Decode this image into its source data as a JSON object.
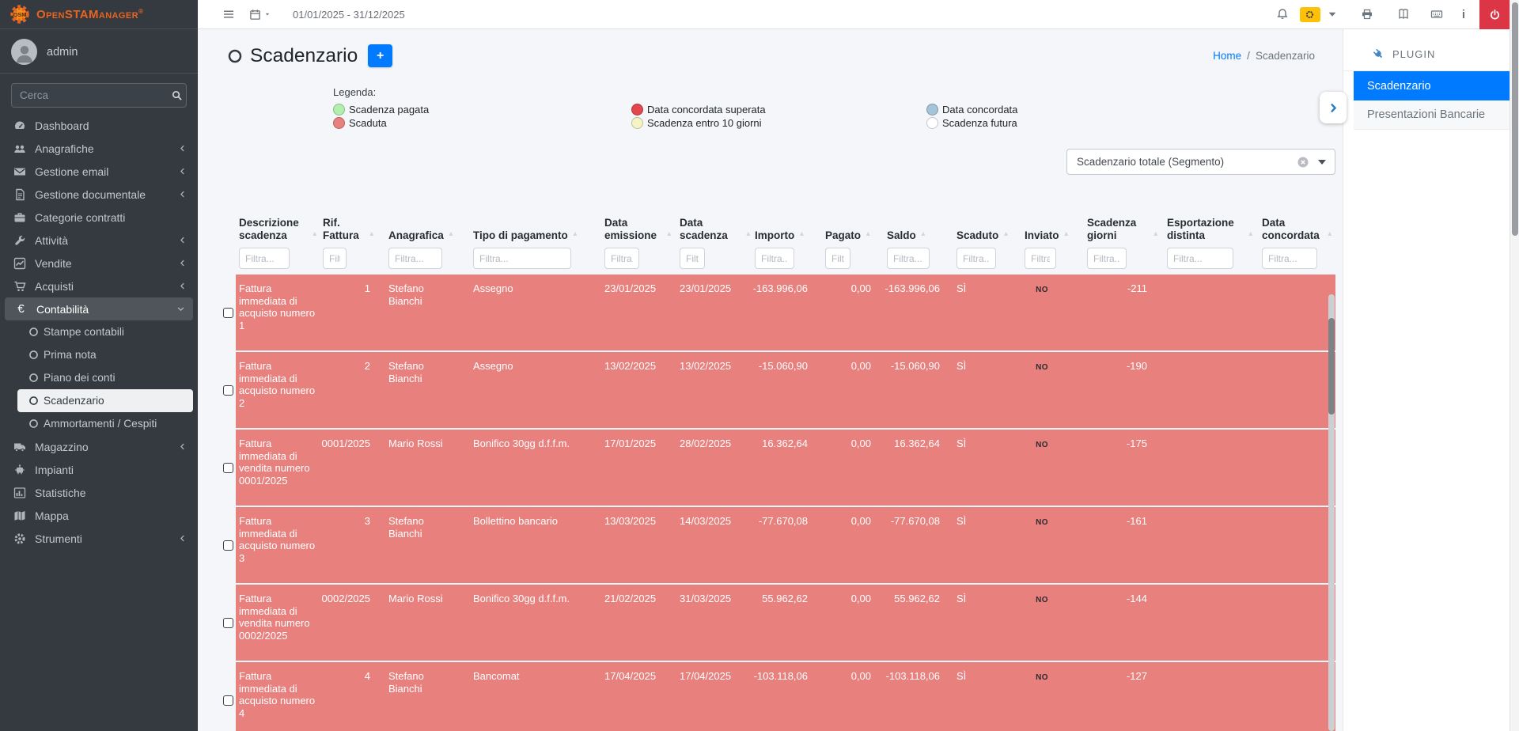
{
  "brand": {
    "logo_text": "OpenSTAManager",
    "logo_reg": "®",
    "logo_badge": "OSM"
  },
  "user": {
    "name": "admin"
  },
  "search": {
    "placeholder": "Cerca"
  },
  "topbar": {
    "date_range": "01/01/2025 - 31/12/2025"
  },
  "sidebar": {
    "items": [
      {
        "label": "Dashboard",
        "icon": "tachometer",
        "chevron": false
      },
      {
        "label": "Anagrafiche",
        "icon": "users",
        "chevron": true
      },
      {
        "label": "Gestione email",
        "icon": "envelope",
        "chevron": true
      },
      {
        "label": "Gestione documentale",
        "icon": "file",
        "chevron": true
      },
      {
        "label": "Categorie contratti",
        "icon": "briefcase",
        "chevron": false
      },
      {
        "label": "Attività",
        "icon": "wrench",
        "chevron": true
      },
      {
        "label": "Vendite",
        "icon": "chart-line",
        "chevron": true
      },
      {
        "label": "Acquisti",
        "icon": "cart",
        "chevron": true
      },
      {
        "label": "Contabilità",
        "icon": "euro",
        "chevron": false,
        "open": true,
        "children": [
          "Stampe contabili",
          "Prima nota",
          "Piano dei conti",
          "Scadenzario",
          "Ammortamenti / Cespiti"
        ],
        "active_child": "Scadenzario"
      },
      {
        "label": "Magazzino",
        "icon": "truck",
        "chevron": true
      },
      {
        "label": "Impianti",
        "icon": "robot",
        "chevron": false
      },
      {
        "label": "Statistiche",
        "icon": "bar-chart",
        "chevron": false
      },
      {
        "label": "Mappa",
        "icon": "map",
        "chevron": false
      },
      {
        "label": "Strumenti",
        "icon": "gear",
        "chevron": true
      }
    ]
  },
  "page": {
    "title": "Scadenzario",
    "add_button": "+",
    "breadcrumb_home": "Home",
    "breadcrumb_sep": "/",
    "breadcrumb_current": "Scadenzario"
  },
  "legend": {
    "title": "Legenda:",
    "items": [
      {
        "label": "Scadenza pagata",
        "color": "#b3efac"
      },
      {
        "label": "Scaduta",
        "color": "#e8807e"
      },
      {
        "label": "Data concordata superata",
        "color": "#e2474d"
      },
      {
        "label": "Scadenza entro 10 giorni",
        "color": "#f6f4c5"
      },
      {
        "label": "Data concordata",
        "color": "#a4c4da"
      },
      {
        "label": "Scadenza futura",
        "color": "#ffffff"
      }
    ]
  },
  "segment": {
    "value": "Scadenzario totale (Segmento)"
  },
  "table": {
    "filter_placeholder": "Filtra...",
    "columns": [
      "Descrizione scadenza",
      "Rif. Fattura",
      "Anagrafica",
      "Tipo di pagamento",
      "Data emissione",
      "Data scadenza",
      "Importo",
      "Pagato",
      "Saldo",
      "Scaduto",
      "Inviato",
      "Scadenza giorni",
      "Esportazione distinta",
      "Data concordata"
    ],
    "row_color": "#e8807e",
    "rows": [
      {
        "descrizione": "Fattura immediata di acquisto numero 1",
        "rif": "1",
        "anagrafica": "Stefano Bianchi",
        "pagamento": "Assegno",
        "emissione": "23/01/2025",
        "scadenza": "23/01/2025",
        "importo": "-163.996,06",
        "pagato": "0,00",
        "saldo": "-163.996,06",
        "scaduto": "SÌ",
        "inviato": "NO",
        "giorni": "-211",
        "esportazione": "",
        "concordata": ""
      },
      {
        "descrizione": "Fattura immediata di acquisto numero 2",
        "rif": "2",
        "anagrafica": "Stefano Bianchi",
        "pagamento": "Assegno",
        "emissione": "13/02/2025",
        "scadenza": "13/02/2025",
        "importo": "-15.060,90",
        "pagato": "0,00",
        "saldo": "-15.060,90",
        "scaduto": "SÌ",
        "inviato": "NO",
        "giorni": "-190",
        "esportazione": "",
        "concordata": ""
      },
      {
        "descrizione": "Fattura immediata di vendita numero 0001/2025",
        "rif": "0001/2025",
        "anagrafica": "Mario Rossi",
        "pagamento": "Bonifico 30gg d.f.f.m.",
        "emissione": "17/01/2025",
        "scadenza": "28/02/2025",
        "importo": "16.362,64",
        "pagato": "0,00",
        "saldo": "16.362,64",
        "scaduto": "SÌ",
        "inviato": "NO",
        "giorni": "-175",
        "esportazione": "",
        "concordata": ""
      },
      {
        "descrizione": "Fattura immediata di acquisto numero 3",
        "rif": "3",
        "anagrafica": "Stefano Bianchi",
        "pagamento": "Bollettino bancario",
        "emissione": "13/03/2025",
        "scadenza": "14/03/2025",
        "importo": "-77.670,08",
        "pagato": "0,00",
        "saldo": "-77.670,08",
        "scaduto": "SÌ",
        "inviato": "NO",
        "giorni": "-161",
        "esportazione": "",
        "concordata": ""
      },
      {
        "descrizione": "Fattura immediata di vendita numero 0002/2025",
        "rif": "0002/2025",
        "anagrafica": "Mario Rossi",
        "pagamento": "Bonifico 30gg d.f.f.m.",
        "emissione": "21/02/2025",
        "scadenza": "31/03/2025",
        "importo": "55.962,62",
        "pagato": "0,00",
        "saldo": "55.962,62",
        "scaduto": "SÌ",
        "inviato": "NO",
        "giorni": "-144",
        "esportazione": "",
        "concordata": ""
      },
      {
        "descrizione": "Fattura immediata di acquisto numero 4",
        "rif": "4",
        "anagrafica": "Stefano Bianchi",
        "pagamento": "Bancomat",
        "emissione": "17/04/2025",
        "scadenza": "17/04/2025",
        "importo": "-103.118,06",
        "pagato": "0,00",
        "saldo": "-103.118,06",
        "scaduto": "SÌ",
        "inviato": "NO",
        "giorni": "-127",
        "esportazione": "",
        "concordata": ""
      }
    ]
  },
  "plugin_panel": {
    "title": "PLUGIN",
    "tabs": [
      {
        "label": "Scadenzario",
        "active": true
      },
      {
        "label": "Presentazioni Bancarie",
        "active": false
      }
    ]
  }
}
